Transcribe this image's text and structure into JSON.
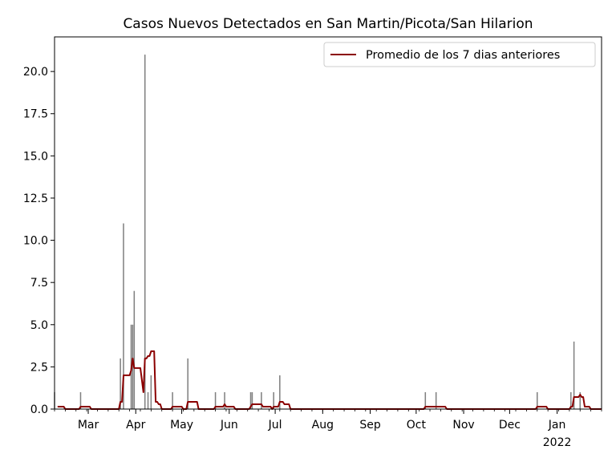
{
  "chart_data": {
    "type": "bar",
    "title": "Casos Nuevos Detectados en San Martin/Picota/San Hilarion",
    "xlabel": "",
    "ylabel": "",
    "ylim": [
      0,
      22.05
    ],
    "yticks": [
      "0.0",
      "2.5",
      "5.0",
      "7.5",
      "10.0",
      "12.5",
      "15.0",
      "17.5",
      "20.0"
    ],
    "xrange": [
      "2021-02-07",
      "2022-01-30"
    ],
    "xticks": [
      {
        "date": "2021-03-01",
        "label": "Mar"
      },
      {
        "date": "2021-04-01",
        "label": "Apr"
      },
      {
        "date": "2021-05-01",
        "label": "May"
      },
      {
        "date": "2021-06-01",
        "label": "Jun"
      },
      {
        "date": "2021-07-01",
        "label": "Jul"
      },
      {
        "date": "2021-08-01",
        "label": "Aug"
      },
      {
        "date": "2021-09-01",
        "label": "Sep"
      },
      {
        "date": "2021-10-01",
        "label": "Oct"
      },
      {
        "date": "2021-11-01",
        "label": "Nov"
      },
      {
        "date": "2021-12-01",
        "label": "Dec"
      },
      {
        "date": "2022-01-01",
        "label": "Jan",
        "sublabel": "2022"
      }
    ],
    "legend": {
      "position": "top-right",
      "entries": [
        "Promedio de los 7 dias anteriores"
      ]
    },
    "bar_color": "#808080",
    "line_color": "#8b0000",
    "daily_cases": [
      {
        "date": "2021-02-07",
        "value": 1
      },
      {
        "date": "2021-02-24",
        "value": 1
      },
      {
        "date": "2021-03-22",
        "value": 3
      },
      {
        "date": "2021-03-24",
        "value": 11
      },
      {
        "date": "2021-03-29",
        "value": 5
      },
      {
        "date": "2021-03-30",
        "value": 5
      },
      {
        "date": "2021-03-31",
        "value": 7
      },
      {
        "date": "2021-04-07",
        "value": 21
      },
      {
        "date": "2021-04-09",
        "value": 1
      },
      {
        "date": "2021-04-11",
        "value": 2
      },
      {
        "date": "2021-04-25",
        "value": 1
      },
      {
        "date": "2021-05-05",
        "value": 3
      },
      {
        "date": "2021-05-23",
        "value": 1
      },
      {
        "date": "2021-05-29",
        "value": 1
      },
      {
        "date": "2021-06-15",
        "value": 1
      },
      {
        "date": "2021-06-16",
        "value": 1
      },
      {
        "date": "2021-06-22",
        "value": 1
      },
      {
        "date": "2021-06-30",
        "value": 1
      },
      {
        "date": "2021-07-04",
        "value": 2
      },
      {
        "date": "2021-10-07",
        "value": 1
      },
      {
        "date": "2021-10-14",
        "value": 1
      },
      {
        "date": "2021-12-19",
        "value": 1
      },
      {
        "date": "2022-01-10",
        "value": 1
      },
      {
        "date": "2022-01-12",
        "value": 4
      },
      {
        "date": "2022-01-16",
        "value": 1
      }
    ]
  }
}
